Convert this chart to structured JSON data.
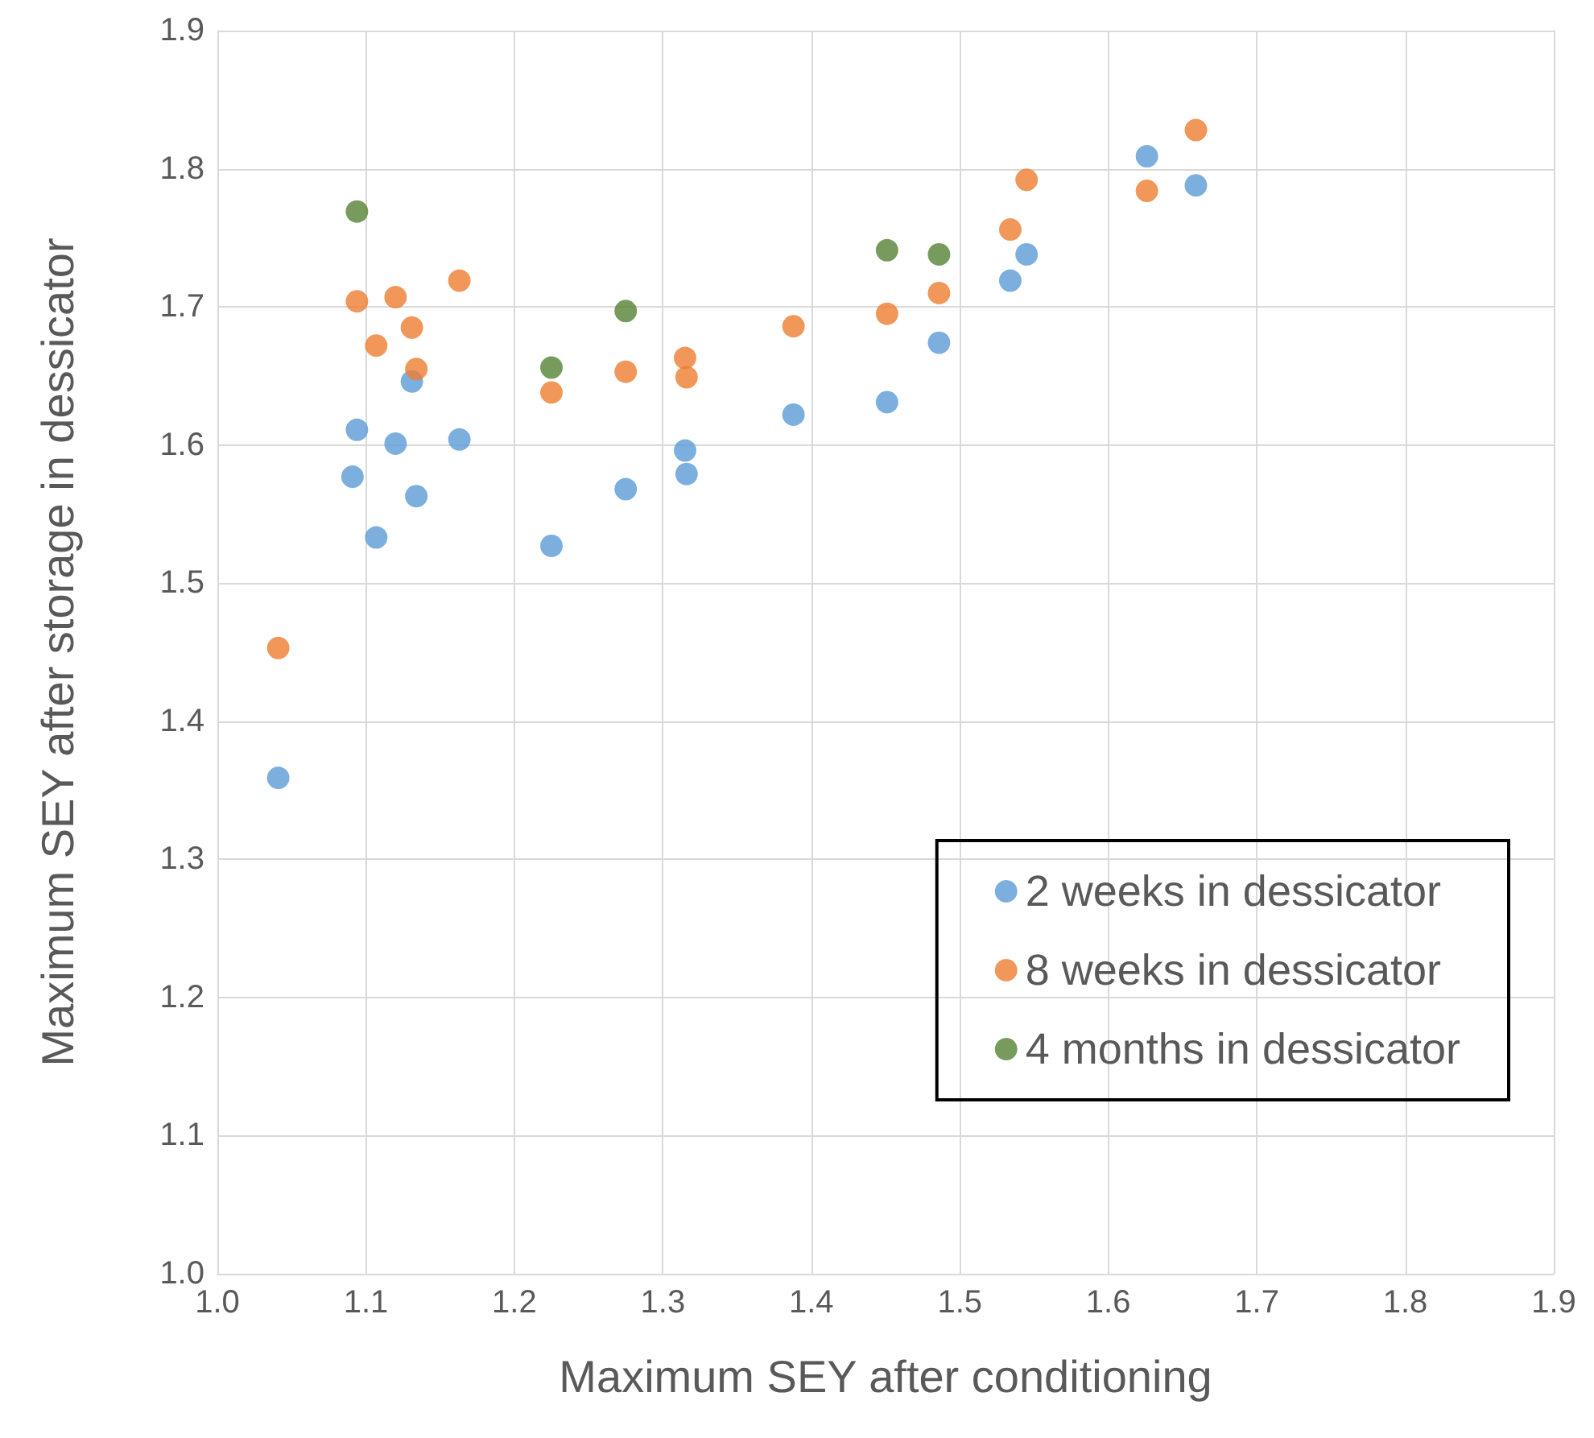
{
  "chart_data": {
    "type": "scatter",
    "xlabel": "Maximum SEY after conditioning",
    "ylabel": "Maximum SEY after storage in dessicator",
    "xlim": [
      1.0,
      1.9
    ],
    "xticks": [
      {
        "value": 1,
        "label": "1.0"
      },
      1.1,
      1.2,
      1.3,
      1.4,
      1.5,
      1.6,
      1.7,
      1.8,
      1.9
    ],
    "ylim": [
      1.0,
      1.9
    ],
    "yticks": [
      {
        "value": 1,
        "label": "1.0"
      },
      1.1,
      1.2,
      1.3,
      1.4,
      1.5,
      1.6,
      1.7,
      1.8,
      1.9
    ],
    "grid": true,
    "legend": "bottom right",
    "marker": "circle",
    "series": [
      {
        "name": "2 weeks in dessicator",
        "color": "#5b9bd5",
        "x": [
          1.041,
          1.091,
          1.094,
          1.107,
          1.12,
          1.131,
          1.134,
          1.163,
          1.225,
          1.275,
          1.315,
          1.316,
          1.388,
          1.451,
          1.486,
          1.534,
          1.545,
          1.626,
          1.659
        ],
        "values": [
          1.359,
          1.577,
          1.611,
          1.533,
          1.601,
          1.646,
          1.563,
          1.604,
          1.527,
          1.568,
          1.596,
          1.579,
          1.622,
          1.631,
          1.674,
          1.719,
          1.738,
          1.809,
          1.788
        ]
      },
      {
        "name": "8 weeks in dessicator",
        "color": "#ed7d31",
        "x": [
          1.041,
          1.094,
          1.107,
          1.12,
          1.131,
          1.134,
          1.163,
          1.225,
          1.275,
          1.315,
          1.316,
          1.388,
          1.451,
          1.486,
          1.534,
          1.545,
          1.626,
          1.659
        ],
        "values": [
          1.453,
          1.704,
          1.672,
          1.707,
          1.685,
          1.655,
          1.719,
          1.638,
          1.653,
          1.663,
          1.649,
          1.686,
          1.695,
          1.71,
          1.756,
          1.792,
          1.784,
          1.828
        ]
      },
      {
        "name": "4 months in dessicator",
        "color": "#548235",
        "x": [
          1.094,
          1.225,
          1.275,
          1.451,
          1.486
        ],
        "values": [
          1.769,
          1.656,
          1.697,
          1.741,
          1.738
        ]
      }
    ]
  }
}
